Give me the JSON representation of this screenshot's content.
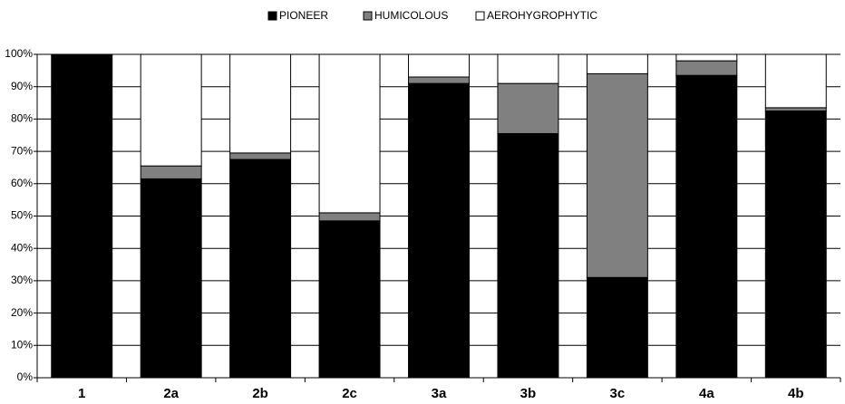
{
  "chart_data": {
    "type": "stacked_bar",
    "categories": [
      "1",
      "2a",
      "2b",
      "2c",
      "3a",
      "3b",
      "3c",
      "4a",
      "4b"
    ],
    "series": [
      {
        "name": "PIONEER",
        "color": "#000000",
        "values": [
          100,
          61.5,
          67.5,
          48.5,
          91,
          75.5,
          31,
          93.5,
          82.5
        ]
      },
      {
        "name": "HUMICOLOUS",
        "color": "#808080",
        "values": [
          0,
          4,
          2,
          2.5,
          2,
          15.5,
          63,
          4.5,
          1
        ]
      },
      {
        "name": "AEROHYGROPHYTIC",
        "color": "#ffffff",
        "values": [
          0,
          34.5,
          30.5,
          49,
          7,
          9,
          6,
          2,
          16.5
        ]
      }
    ],
    "ylim": [
      0,
      100
    ],
    "yticks": [
      {
        "value": 0,
        "label": "0%"
      },
      {
        "value": 10,
        "label": "10%"
      },
      {
        "value": 20,
        "label": "20%"
      },
      {
        "value": 30,
        "label": "30%"
      },
      {
        "value": 40,
        "label": "40%"
      },
      {
        "value": 50,
        "label": "50%"
      },
      {
        "value": 60,
        "label": "60%"
      },
      {
        "value": 70,
        "label": "70%"
      },
      {
        "value": 80,
        "label": "80%"
      },
      {
        "value": 90,
        "label": "90%"
      },
      {
        "value": 100,
        "label": "100%"
      }
    ],
    "grid": true,
    "legend": "top"
  }
}
